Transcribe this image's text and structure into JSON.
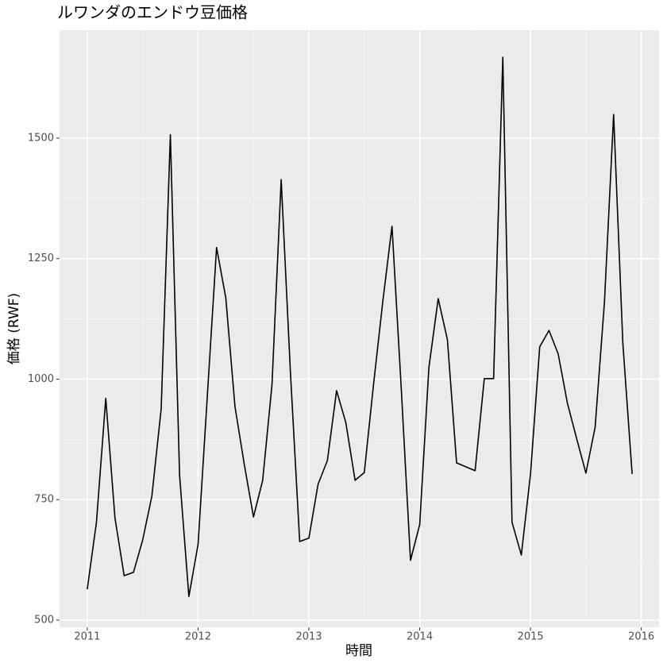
{
  "chart_data": {
    "type": "line",
    "title": "ルワンダのエンドウ豆価格",
    "x_label": "時間",
    "y_label": "価格 (RWF)",
    "x": [
      2011.0,
      2011.083,
      2011.167,
      2011.25,
      2011.333,
      2011.417,
      2011.5,
      2011.583,
      2011.667,
      2011.75,
      2011.833,
      2011.917,
      2012.0,
      2012.083,
      2012.167,
      2012.25,
      2012.333,
      2012.417,
      2012.5,
      2012.583,
      2012.667,
      2012.75,
      2012.833,
      2012.917,
      2013.0,
      2013.083,
      2013.167,
      2013.25,
      2013.333,
      2013.417,
      2013.5,
      2013.583,
      2013.667,
      2013.75,
      2013.833,
      2013.917,
      2014.0,
      2014.083,
      2014.167,
      2014.25,
      2014.333,
      2014.417,
      2014.5,
      2014.583,
      2014.667,
      2014.75,
      2014.833,
      2014.917,
      2015.0,
      2015.083,
      2015.167,
      2015.25,
      2015.333,
      2015.417,
      2015.5,
      2015.583,
      2015.667,
      2015.75,
      2015.833,
      2015.917
    ],
    "series": [
      {
        "name": "価格",
        "color": "#000000",
        "values": [
          564,
          703,
          960,
          712,
          592,
          599,
          666,
          757,
          938,
          1507,
          801,
          549,
          657,
          963,
          1273,
          1169,
          943,
          823,
          714,
          790,
          988,
          1414,
          1016,
          663,
          670,
          782,
          831,
          976,
          910,
          790,
          806,
          988,
          1161,
          1317,
          983,
          624,
          698,
          1024,
          1167,
          1082,
          826,
          818,
          810,
          1001,
          1001,
          1668,
          703,
          635,
          803,
          1067,
          1101,
          1052,
          950,
          876,
          805,
          900,
          1159,
          1549,
          1075,
          803
        ]
      }
    ],
    "xlim": [
      2010.75,
      2016.16
    ],
    "ylim": [
      485,
      1724
    ],
    "xticks": [
      2011,
      2012,
      2013,
      2014,
      2015,
      2016
    ],
    "yticks": [
      500,
      750,
      1000,
      1250,
      1500
    ],
    "grid": true
  }
}
